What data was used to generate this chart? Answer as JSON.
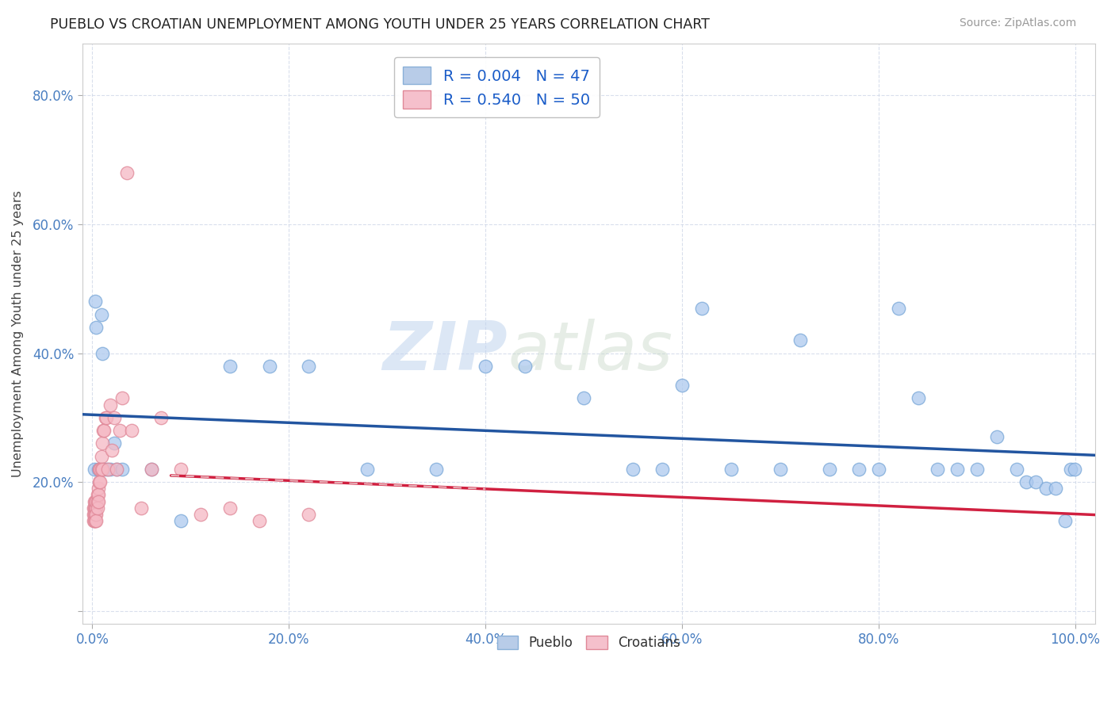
{
  "title": "PUEBLO VS CROATIAN UNEMPLOYMENT AMONG YOUTH UNDER 25 YEARS CORRELATION CHART",
  "source": "Source: ZipAtlas.com",
  "ylabel": "Unemployment Among Youth under 25 years",
  "xlim": [
    -0.01,
    1.02
  ],
  "ylim": [
    -0.02,
    0.88
  ],
  "xticks": [
    0.0,
    0.2,
    0.4,
    0.6,
    0.8,
    1.0
  ],
  "xtick_labels": [
    "0.0%",
    "20.0%",
    "40.0%",
    "60.0%",
    "80.0%",
    "100.0%"
  ],
  "yticks": [
    0.0,
    0.2,
    0.4,
    0.6,
    0.8
  ],
  "ytick_labels": [
    "",
    "20.0%",
    "40.0%",
    "60.0%",
    "80.0%"
  ],
  "pueblo_color": "#adc9ee",
  "croatian_color": "#f5b8c4",
  "pueblo_edge_color": "#7aa8d8",
  "croatian_edge_color": "#e08898",
  "trend_pueblo_color": "#2255a0",
  "trend_croatian_color": "#d02040",
  "trend_croatian_dash_color": "#e8b0b8",
  "R_pueblo": 0.004,
  "N_pueblo": 47,
  "R_croatian": 0.54,
  "N_croatian": 50,
  "watermark": "ZIPatlas",
  "watermark_color": "#c8d8ee",
  "pueblo_x": [
    0.002,
    0.003,
    0.004,
    0.006,
    0.007,
    0.009,
    0.01,
    0.012,
    0.015,
    0.018,
    0.022,
    0.025,
    0.03,
    0.06,
    0.09,
    0.14,
    0.18,
    0.22,
    0.28,
    0.35,
    0.4,
    0.44,
    0.5,
    0.55,
    0.58,
    0.6,
    0.62,
    0.65,
    0.7,
    0.72,
    0.75,
    0.78,
    0.8,
    0.82,
    0.84,
    0.86,
    0.88,
    0.9,
    0.92,
    0.94,
    0.95,
    0.96,
    0.97,
    0.98,
    0.99,
    0.995,
    0.999
  ],
  "pueblo_y": [
    0.22,
    0.48,
    0.44,
    0.22,
    0.22,
    0.46,
    0.4,
    0.22,
    0.22,
    0.22,
    0.26,
    0.22,
    0.22,
    0.22,
    0.14,
    0.38,
    0.38,
    0.38,
    0.22,
    0.22,
    0.38,
    0.38,
    0.33,
    0.22,
    0.22,
    0.35,
    0.47,
    0.22,
    0.22,
    0.42,
    0.22,
    0.22,
    0.22,
    0.47,
    0.33,
    0.22,
    0.22,
    0.22,
    0.27,
    0.22,
    0.2,
    0.2,
    0.19,
    0.19,
    0.14,
    0.22,
    0.22
  ],
  "croatian_x": [
    0.001,
    0.001,
    0.001,
    0.002,
    0.002,
    0.002,
    0.002,
    0.003,
    0.003,
    0.003,
    0.003,
    0.004,
    0.004,
    0.004,
    0.004,
    0.005,
    0.005,
    0.005,
    0.006,
    0.006,
    0.006,
    0.007,
    0.007,
    0.008,
    0.008,
    0.009,
    0.009,
    0.01,
    0.01,
    0.011,
    0.012,
    0.013,
    0.014,
    0.016,
    0.018,
    0.02,
    0.022,
    0.025,
    0.028,
    0.03,
    0.035,
    0.04,
    0.05,
    0.06,
    0.07,
    0.09,
    0.11,
    0.14,
    0.17,
    0.22
  ],
  "croatian_y": [
    0.16,
    0.14,
    0.15,
    0.16,
    0.17,
    0.15,
    0.14,
    0.16,
    0.17,
    0.15,
    0.14,
    0.16,
    0.17,
    0.15,
    0.14,
    0.17,
    0.18,
    0.16,
    0.19,
    0.18,
    0.17,
    0.2,
    0.22,
    0.22,
    0.2,
    0.22,
    0.24,
    0.22,
    0.26,
    0.28,
    0.28,
    0.3,
    0.3,
    0.22,
    0.32,
    0.25,
    0.3,
    0.22,
    0.28,
    0.33,
    0.68,
    0.28,
    0.16,
    0.22,
    0.3,
    0.22,
    0.15,
    0.16,
    0.14,
    0.15
  ]
}
